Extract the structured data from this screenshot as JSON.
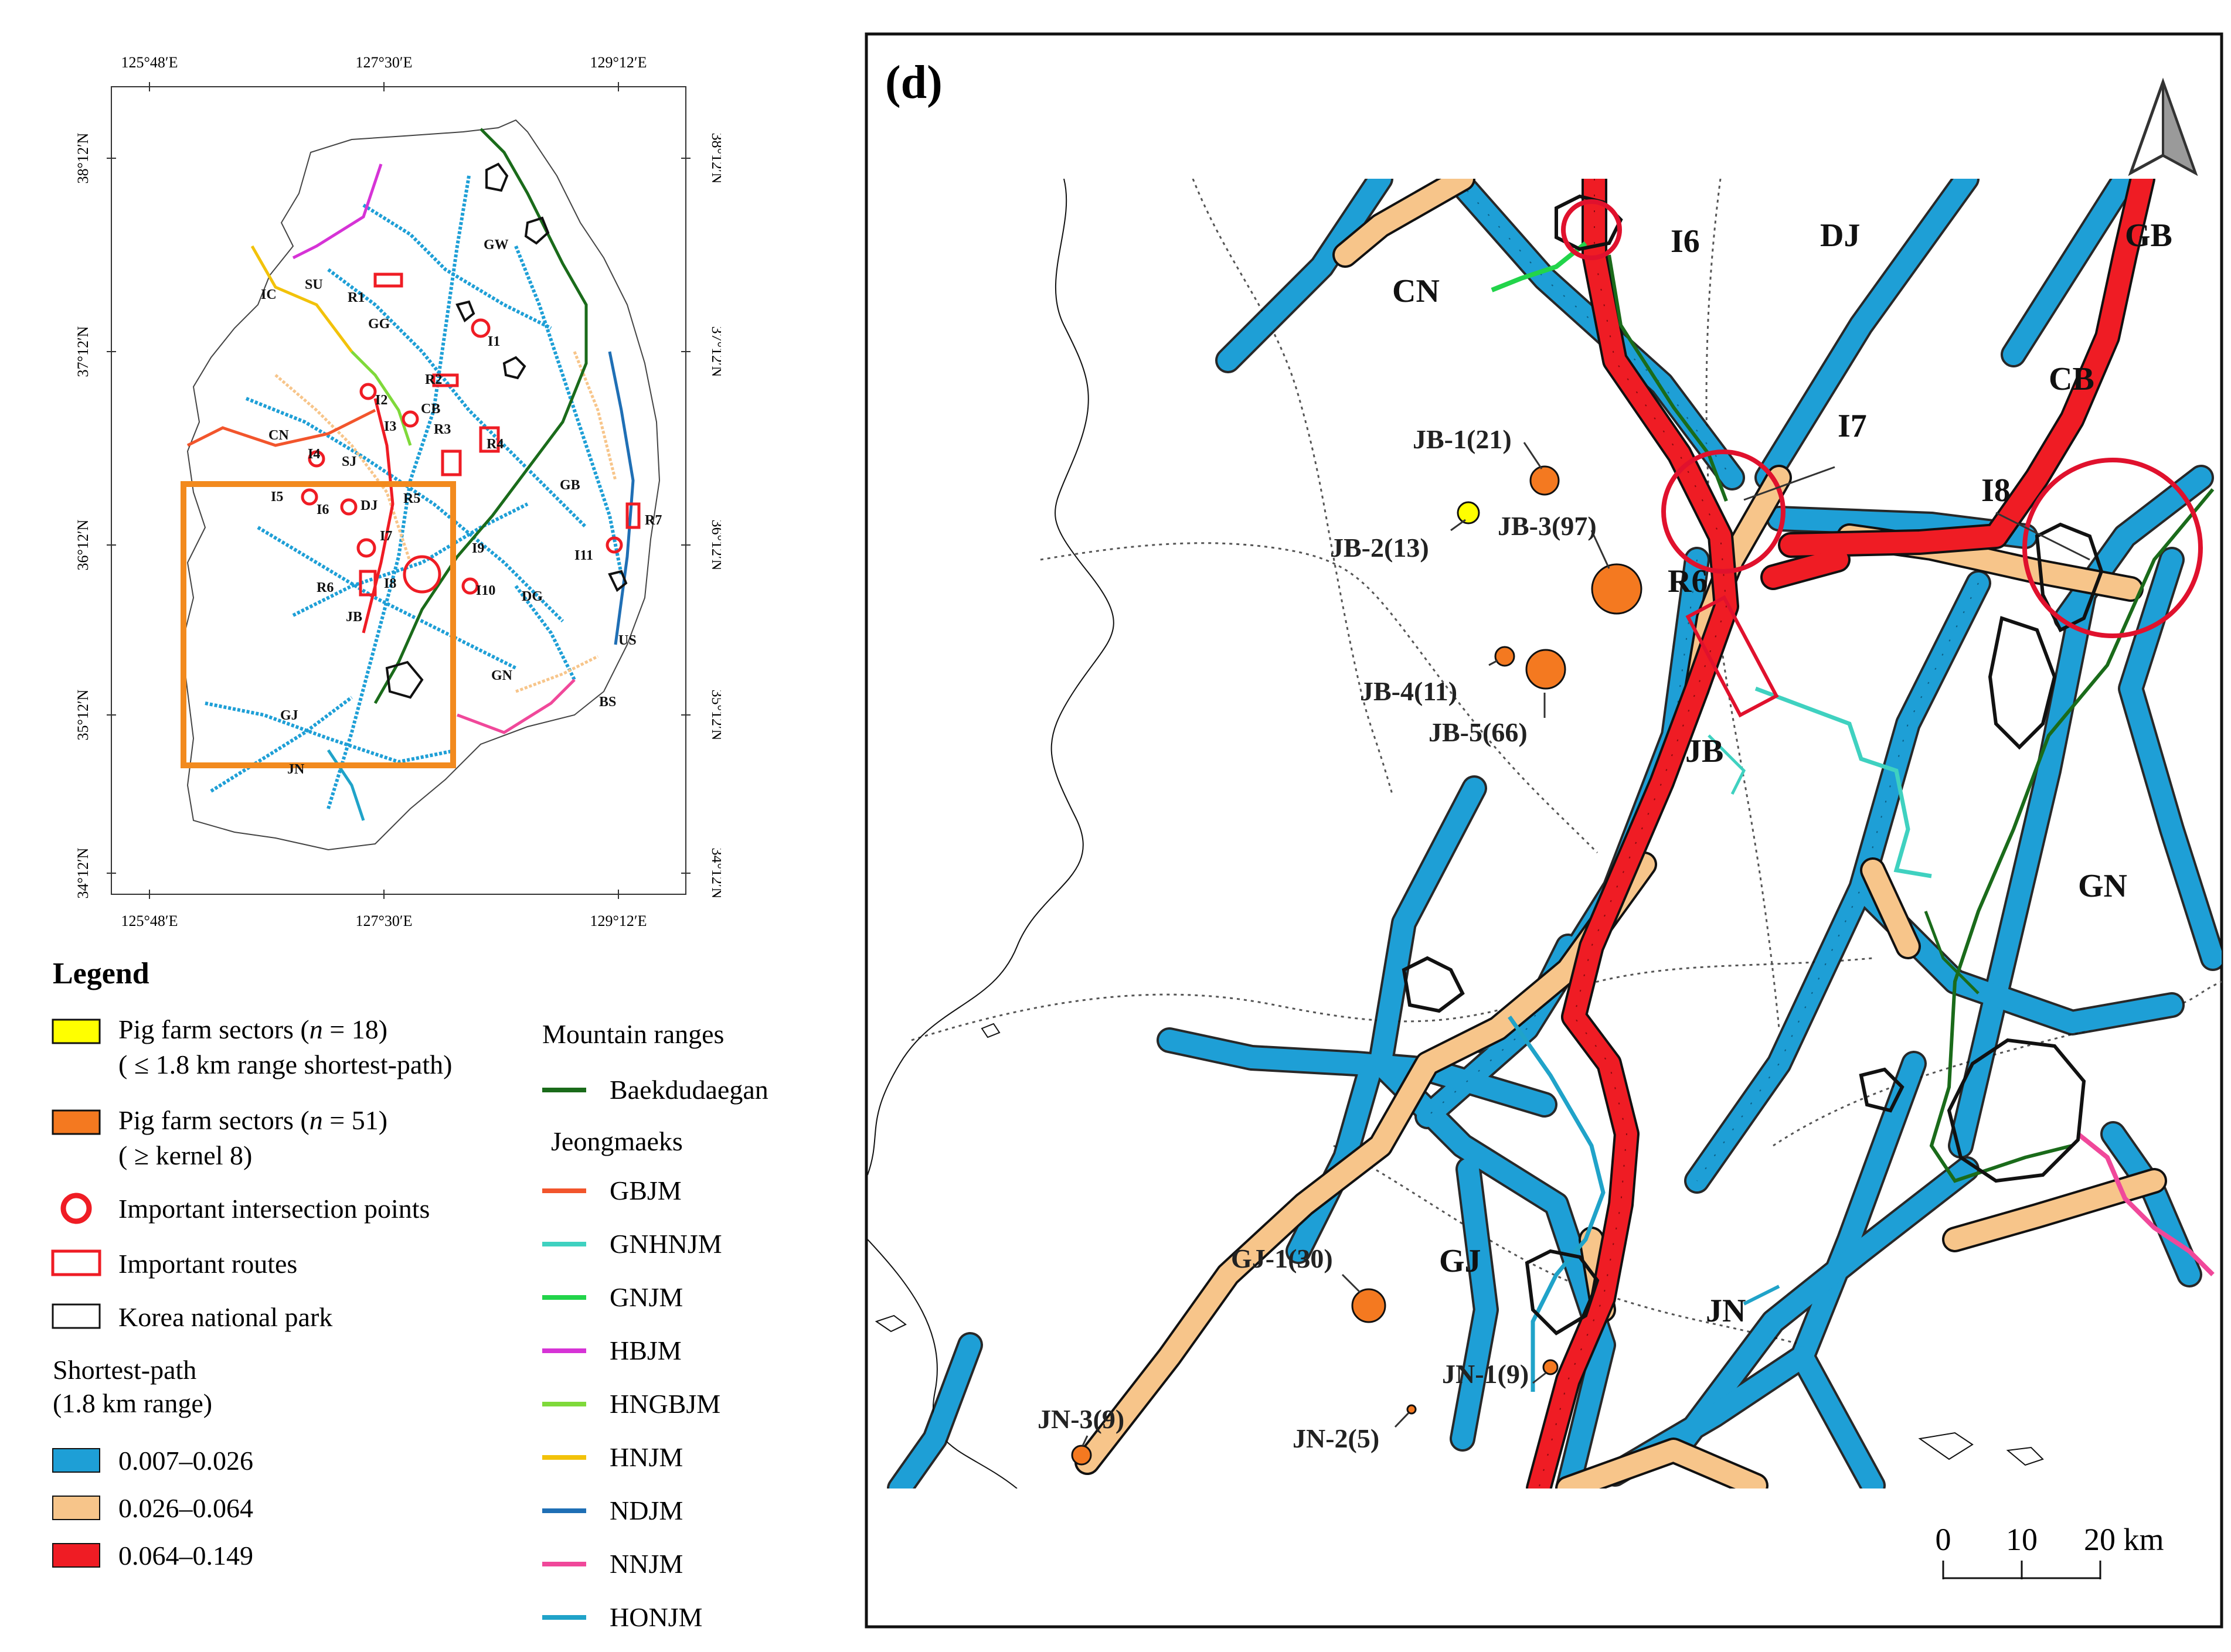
{
  "overview": {
    "lon_labels": [
      "125°48′E",
      "127°30′E",
      "129°12′E"
    ],
    "lat_labels": [
      "38°12′N",
      "37°12′N",
      "36°12′N",
      "35°12′N",
      "34°12′N"
    ],
    "regions": [
      "SU",
      "IC",
      "GG",
      "GW",
      "CN",
      "SJ",
      "CB",
      "DJ",
      "GB",
      "JB",
      "DG",
      "US",
      "GN",
      "BS",
      "GJ",
      "JN"
    ],
    "points": [
      "I1",
      "I2",
      "I3",
      "I4",
      "I5",
      "I6",
      "I7",
      "I8",
      "I9",
      "I10",
      "I11"
    ],
    "routes": [
      "R1",
      "R2",
      "R3",
      "R4",
      "R5",
      "R6",
      "R7"
    ]
  },
  "legend": {
    "title": "Legend",
    "items": [
      {
        "line1_a": "Pig farm sectors (",
        "line1_n": "n",
        "line1_b": " = 18)",
        "line2": "( ≤ 1.8 km range shortest-path)",
        "color": "#ffff00"
      },
      {
        "line1_a": "Pig farm sectors (",
        "line1_n": "n",
        "line1_b": " = 51)",
        "line2": "( ≥ kernel 8)",
        "color": "#f47920"
      }
    ],
    "intersection_label": "Important intersection points",
    "routes_label": "Important routes",
    "park_label": "Korea national park",
    "shortest_path_title_1": "Shortest-path",
    "shortest_path_title_2": "(1.8 km range)",
    "classes": [
      {
        "label": "0.007–0.026",
        "color": "#1e9fd6"
      },
      {
        "label": "0.026–0.064",
        "color": "#f7c58a"
      },
      {
        "label": "0.064–0.149",
        "color": "#ef1c24"
      }
    ],
    "mountain_title": "Mountain ranges",
    "baekdu": {
      "label": "Baekdudaegan",
      "color": "#1a6b1a"
    },
    "jeong_title": "Jeongmaeks",
    "jeongmaeks": [
      {
        "label": "GBJM",
        "color": "#f2552c"
      },
      {
        "label": "GNHNJM",
        "color": "#3fd1c0"
      },
      {
        "label": "GNJM",
        "color": "#22d44a"
      },
      {
        "label": "HBJM",
        "color": "#d633d6"
      },
      {
        "label": "HNGBJM",
        "color": "#7fd93a"
      },
      {
        "label": "HNJM",
        "color": "#f2c20a"
      },
      {
        "label": "NDJM",
        "color": "#1f6fb5"
      },
      {
        "label": "NNJM",
        "color": "#f0489a"
      },
      {
        "label": "HONJM",
        "color": "#20a3c9"
      }
    ]
  },
  "detail": {
    "panel_label": "(d)",
    "regions": [
      "CN",
      "DJ",
      "GB",
      "CB",
      "JB",
      "GN",
      "GJ",
      "JN"
    ],
    "points": [
      "I6",
      "I7",
      "I8"
    ],
    "route": "R6",
    "farms": [
      "JB-1(21)",
      "JB-2(13)",
      "JB-3(97)",
      "JB-4(11)",
      "JB-5(66)",
      "GJ-1(30)",
      "JN-1(9)",
      "JN-2(5)",
      "JN-3(9)"
    ],
    "scale_ticks": [
      "0",
      "10",
      "20 km"
    ]
  }
}
